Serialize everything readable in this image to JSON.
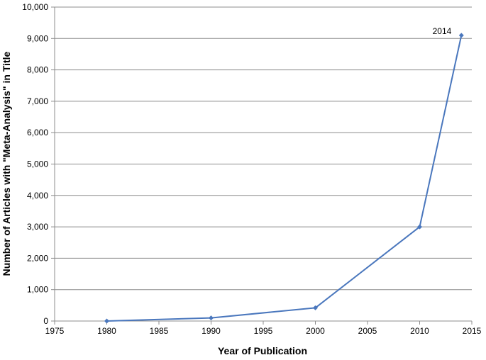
{
  "chart_data": {
    "type": "line",
    "title": "",
    "xlabel": "Year of Publication",
    "ylabel": "Number of Articles with \"Meta-Analysis\" in Title",
    "xlim": [
      1975,
      2015
    ],
    "ylim": [
      0,
      10000
    ],
    "x_ticks": [
      "1975",
      "1980",
      "1985",
      "1990",
      "1995",
      "2000",
      "2005",
      "2010",
      "2015"
    ],
    "y_ticks": [
      "0",
      "1,000",
      "2,000",
      "3,000",
      "4,000",
      "5,000",
      "6,000",
      "7,000",
      "8,000",
      "9,000",
      "10,000"
    ],
    "grid": "horizontal",
    "series": [
      {
        "x": [
          1980,
          1990,
          2000,
          2010,
          2014
        ],
        "y": [
          0,
          100,
          420,
          3000,
          9100
        ],
        "color": "#4a77bd"
      }
    ],
    "annotations": [
      {
        "text": "2014",
        "x": 2014,
        "y": 9100
      }
    ]
  }
}
